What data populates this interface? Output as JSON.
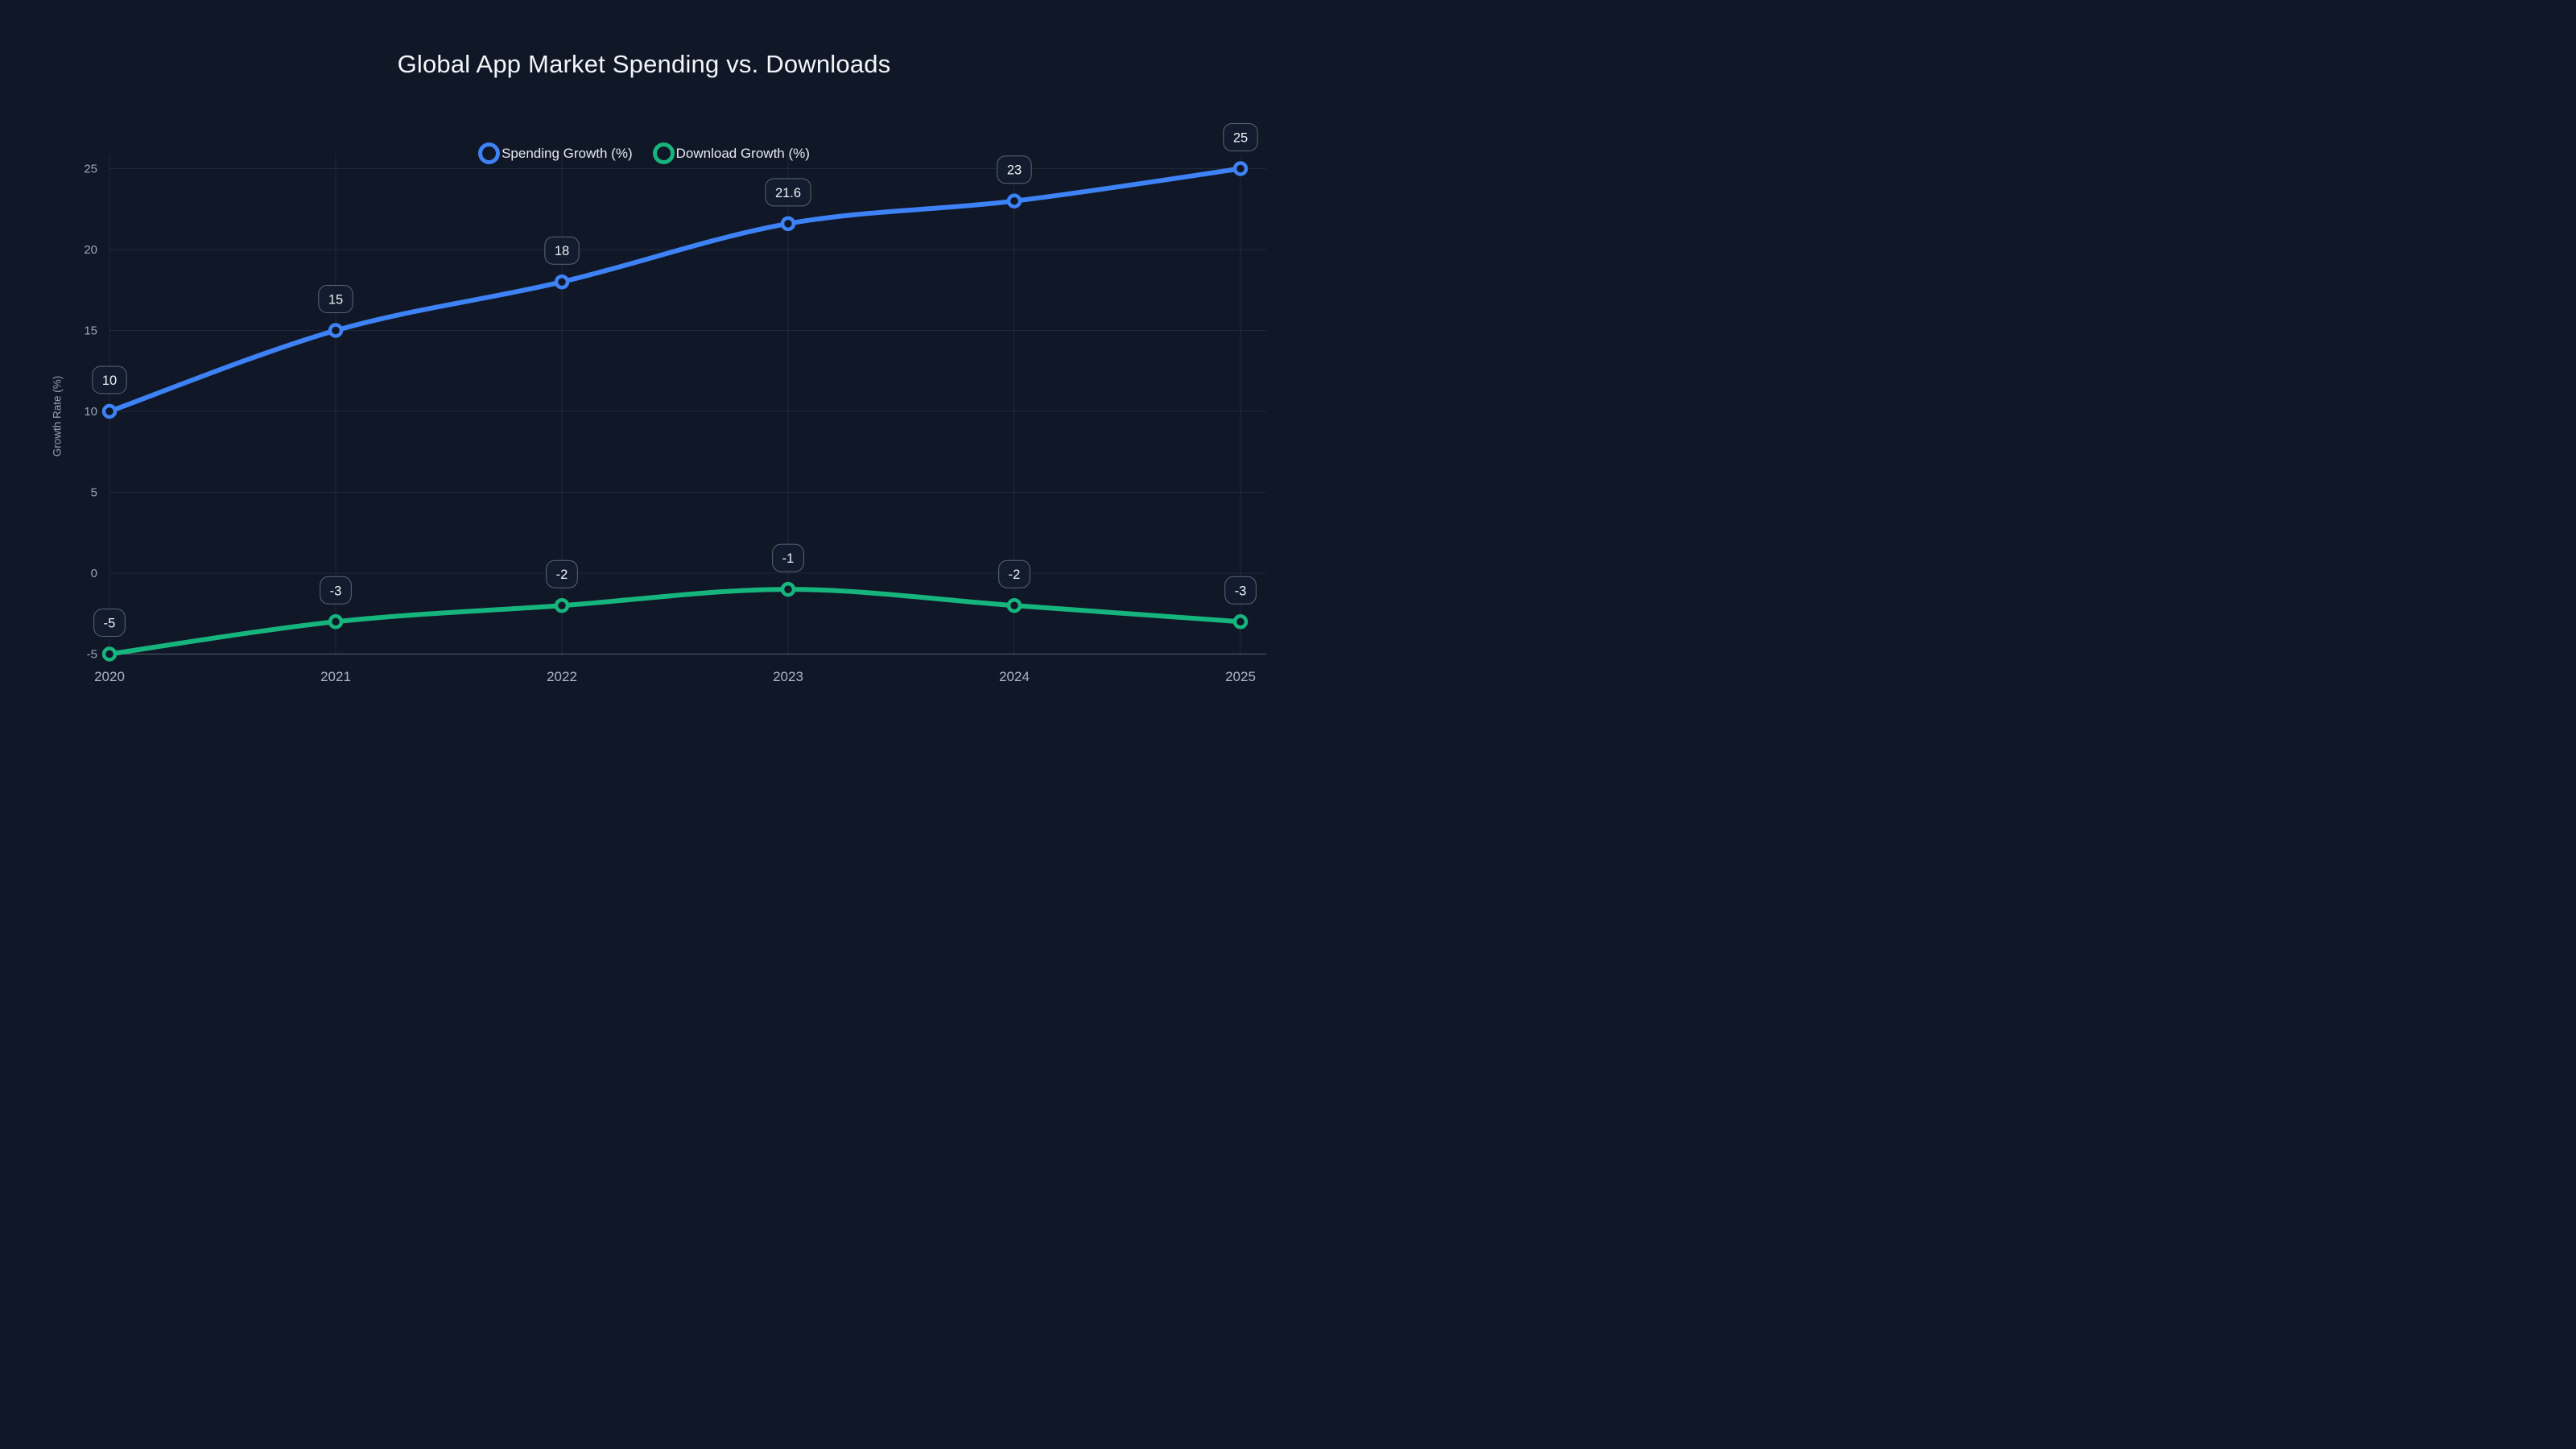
{
  "title": "Global App Market Spending vs. Downloads",
  "legend": [
    {
      "label": "Spending Growth (%)",
      "color": "#3e82f7"
    },
    {
      "label": "Download Growth (%)",
      "color": "#16b57d"
    }
  ],
  "colors": {
    "background": "#101726",
    "grid": "rgba(148,163,184,0.13)",
    "axis_line": "rgba(151,166,187,0.5)",
    "y_tick_text": "#9aa7b8",
    "x_tick_text": "#aab5c3",
    "title_text": "#f2f5f9",
    "legend_text": "#e6ebf1",
    "label_box_bg": "#121c2e",
    "label_box_border": "rgba(163,177,195,0.5)",
    "label_box_text": "#eef2f7",
    "spending_line": "#3e82f7",
    "download_line": "#16b57d"
  },
  "chart_data": {
    "type": "line",
    "x": [
      "2020",
      "2021",
      "2022",
      "2023",
      "2024",
      "2025"
    ],
    "series": [
      {
        "name": "Spending Growth (%)",
        "color": "#3e82f7",
        "values": [
          10,
          15,
          18,
          21.6,
          23,
          25
        ]
      },
      {
        "name": "Download Growth (%)",
        "color": "#16b57d",
        "values": [
          -5,
          -3,
          -2,
          -1,
          -2,
          -3
        ]
      }
    ],
    "title": "Global App Market Spending vs. Downloads",
    "xlabel": "",
    "ylabel": "Growth Rate (%)",
    "ylim": [
      -5,
      25
    ],
    "yticks": [
      -5,
      0,
      5,
      10,
      15,
      20,
      25
    ],
    "grid": true,
    "smooth": true,
    "point_labels": true,
    "legend_position": "top-center",
    "marker_style": "open-circle"
  }
}
